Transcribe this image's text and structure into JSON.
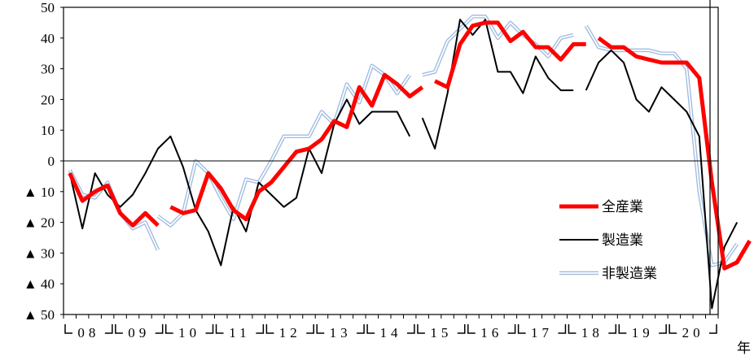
{
  "chart_data": {
    "type": "line",
    "x_unit": "年",
    "ylim": [
      -50,
      50
    ],
    "y_ticks": [
      50,
      40,
      30,
      20,
      10,
      0,
      -10,
      -20,
      -30,
      -40,
      -50
    ],
    "y_tick_labels": [
      "50",
      "40",
      "30",
      "20",
      "10",
      "0",
      "▲ 10",
      "▲ 20",
      "▲ 30",
      "▲ 40",
      "▲ 50"
    ],
    "x_labels": [
      "08",
      "09",
      "10",
      "11",
      "12",
      "13",
      "14",
      "15",
      "16",
      "17",
      "18",
      "19",
      "20"
    ],
    "x_quarters_per_label": 4,
    "legend_position": "right",
    "series": [
      {
        "name": "全産業",
        "color": "#ff0000",
        "segments": [
          {
            "start": 0,
            "values": [
              -4,
              -13,
              -10,
              -8,
              -17,
              -21,
              -17,
              -21
            ]
          },
          {
            "start": 8,
            "values": [
              -15,
              -17,
              -16,
              -4,
              -9,
              -16,
              -19,
              -10,
              -7,
              -2,
              3,
              4,
              7,
              13,
              11,
              24,
              18,
              28,
              25,
              21,
              24
            ]
          },
          {
            "start": 29,
            "values": [
              26,
              24,
              38,
              44,
              45,
              45,
              39,
              42,
              37,
              37,
              33,
              38,
              38
            ]
          },
          {
            "start": 42,
            "values": [
              40,
              37,
              37,
              34,
              33,
              32,
              32,
              32,
              27,
              -7,
              -35,
              -33,
              -26
            ]
          }
        ]
      },
      {
        "name": "製造業",
        "color": "#000000",
        "segments": [
          {
            "start": 0,
            "values": [
              -4,
              -22,
              -4,
              -11,
              -15,
              -11,
              -4,
              4,
              8,
              -2,
              -16,
              -23,
              -34,
              -15,
              -23,
              -7,
              -11,
              -15,
              -12,
              4,
              -4,
              12,
              20,
              12,
              16,
              16,
              16,
              8
            ]
          },
          {
            "start": 28,
            "values": [
              14,
              4,
              22,
              46,
              41,
              46,
              29,
              29,
              22,
              34,
              27,
              23,
              23
            ]
          },
          {
            "start": 41,
            "values": [
              23,
              32,
              36,
              32,
              20,
              16,
              24,
              20,
              16,
              8,
              -48,
              -28,
              -20
            ]
          }
        ]
      },
      {
        "name": "非製造業",
        "color": "#a9c5e6",
        "segments": [
          {
            "start": 0,
            "values": [
              -3,
              -11,
              -12,
              -7,
              -17,
              -22,
              -20,
              -29
            ]
          },
          {
            "start": 7,
            "values": [
              -18,
              -21,
              -17,
              0,
              -4,
              -12,
              -19,
              -6,
              -7,
              0,
              8,
              8,
              8,
              16,
              12,
              25,
              19,
              31,
              28,
              22,
              28
            ]
          },
          {
            "start": 28,
            "values": [
              28,
              29,
              39,
              43,
              47,
              47,
              40,
              45,
              41,
              38,
              34,
              40,
              41
            ]
          },
          {
            "start": 41,
            "values": [
              44,
              37,
              36,
              36,
              36,
              36,
              35,
              35,
              30,
              -10,
              -34,
              -33,
              -27
            ]
          }
        ]
      }
    ]
  }
}
